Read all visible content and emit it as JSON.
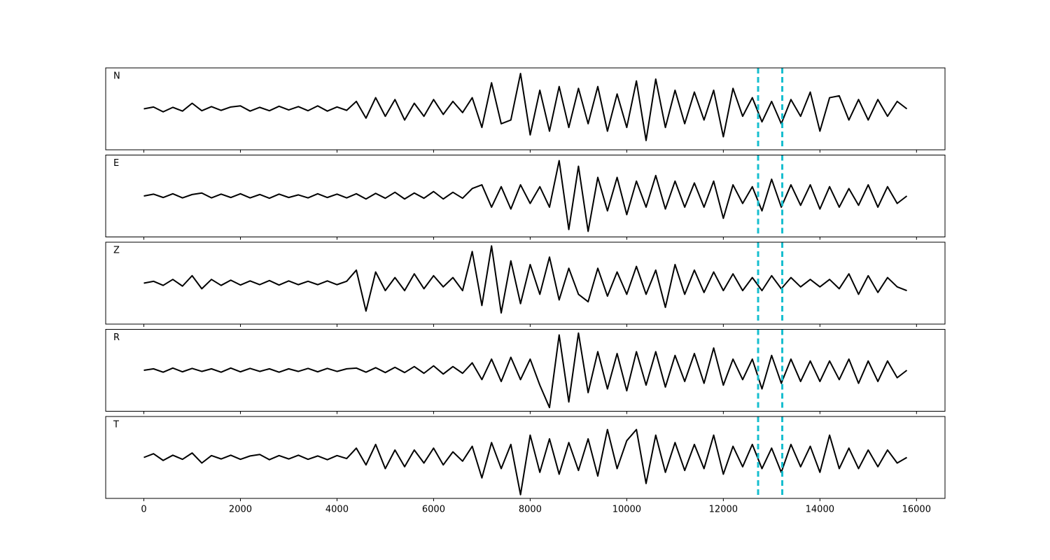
{
  "chart_data": {
    "type": "line",
    "x": [
      0,
      200,
      400,
      600,
      800,
      1000,
      1200,
      1400,
      1600,
      1800,
      2000,
      2200,
      2400,
      2600,
      2800,
      3000,
      3200,
      3400,
      3600,
      3800,
      4000,
      4200,
      4400,
      4600,
      4800,
      5000,
      5200,
      5400,
      5600,
      5800,
      6000,
      6200,
      6400,
      6600,
      6800,
      7000,
      7200,
      7400,
      7600,
      7800,
      8000,
      8200,
      8400,
      8600,
      8800,
      9000,
      9200,
      9400,
      9600,
      9800,
      10000,
      10200,
      10400,
      10600,
      10800,
      11000,
      11200,
      11400,
      11600,
      11800,
      12000,
      12200,
      12400,
      12600,
      12800,
      13000,
      13200,
      13400,
      13600,
      13800,
      14000,
      14200,
      14400,
      14600,
      14800,
      15000,
      15200,
      15400,
      15600,
      15800
    ],
    "series": [
      {
        "name": "N",
        "color": "#000000",
        "values": [
          0,
          0.05,
          -0.08,
          0.04,
          -0.06,
          0.15,
          -0.05,
          0.06,
          -0.04,
          0.05,
          0.08,
          -0.06,
          0.04,
          -0.05,
          0.07,
          -0.03,
          0.06,
          -0.05,
          0.08,
          -0.06,
          0.05,
          -0.04,
          0.2,
          -0.25,
          0.3,
          -0.2,
          0.25,
          -0.3,
          0.15,
          -0.2,
          0.25,
          -0.15,
          0.2,
          -0.1,
          0.3,
          -0.5,
          0.7,
          -0.4,
          -0.3,
          0.95,
          -0.7,
          0.5,
          -0.6,
          0.6,
          -0.5,
          0.55,
          -0.4,
          0.6,
          -0.6,
          0.4,
          -0.5,
          0.75,
          -0.85,
          0.8,
          -0.5,
          0.5,
          -0.4,
          0.45,
          -0.3,
          0.5,
          -0.75,
          0.55,
          -0.2,
          0.3,
          -0.35,
          0.2,
          -0.4,
          0.25,
          -0.2,
          0.45,
          -0.6,
          0.3,
          0.35,
          -0.3,
          0.25,
          -0.3,
          0.25,
          -0.2,
          0.2,
          0
        ]
      },
      {
        "name": "E",
        "color": "#000000",
        "values": [
          0,
          0.05,
          -0.04,
          0.06,
          -0.05,
          0.04,
          0.08,
          -0.05,
          0.05,
          -0.04,
          0.06,
          -0.05,
          0.04,
          -0.06,
          0.05,
          -0.04,
          0.03,
          -0.05,
          0.06,
          -0.04,
          0.05,
          -0.05,
          0.06,
          -0.08,
          0.07,
          -0.06,
          0.1,
          -0.08,
          0.08,
          -0.06,
          0.12,
          -0.08,
          0.1,
          -0.06,
          0.2,
          0.3,
          -0.3,
          0.25,
          -0.35,
          0.3,
          -0.2,
          0.25,
          -0.3,
          0.95,
          -0.9,
          0.8,
          -0.95,
          0.5,
          -0.4,
          0.5,
          -0.5,
          0.4,
          -0.3,
          0.55,
          -0.35,
          0.4,
          -0.3,
          0.35,
          -0.3,
          0.4,
          -0.6,
          0.3,
          -0.2,
          0.25,
          -0.4,
          0.45,
          -0.3,
          0.3,
          -0.25,
          0.3,
          -0.35,
          0.25,
          -0.3,
          0.2,
          -0.25,
          0.3,
          -0.3,
          0.25,
          -0.2,
          0
        ]
      },
      {
        "name": "Z",
        "color": "#000000",
        "values": [
          0,
          0.05,
          -0.06,
          0.1,
          -0.08,
          0.2,
          -0.15,
          0.1,
          -0.06,
          0.08,
          -0.05,
          0.06,
          -0.04,
          0.07,
          -0.05,
          0.06,
          -0.04,
          0.05,
          -0.04,
          0.06,
          -0.04,
          0.05,
          0.35,
          -0.75,
          0.3,
          -0.2,
          0.15,
          -0.2,
          0.25,
          -0.15,
          0.2,
          -0.1,
          0.15,
          -0.2,
          0.85,
          -0.6,
          1.0,
          -0.8,
          0.6,
          -0.55,
          0.5,
          -0.3,
          0.7,
          -0.45,
          0.4,
          -0.3,
          -0.5,
          0.4,
          -0.35,
          0.3,
          -0.3,
          0.45,
          -0.3,
          0.35,
          -0.65,
          0.5,
          -0.3,
          0.35,
          -0.25,
          0.3,
          -0.2,
          0.25,
          -0.2,
          0.15,
          -0.2,
          0.2,
          -0.15,
          0.15,
          -0.1,
          0.1,
          -0.1,
          0.1,
          -0.15,
          0.25,
          -0.3,
          0.2,
          -0.25,
          0.15,
          -0.1,
          -0.2
        ]
      },
      {
        "name": "R",
        "color": "#000000",
        "values": [
          0,
          0.04,
          -0.05,
          0.06,
          -0.04,
          0.05,
          -0.03,
          0.04,
          -0.05,
          0.06,
          -0.04,
          0.05,
          -0.03,
          0.04,
          -0.05,
          0.04,
          -0.03,
          0.05,
          -0.04,
          0.05,
          -0.03,
          0.04,
          0.06,
          -0.05,
          0.07,
          -0.06,
          0.08,
          -0.06,
          0.1,
          -0.08,
          0.12,
          -0.1,
          0.1,
          -0.08,
          0.2,
          -0.25,
          0.3,
          -0.3,
          0.35,
          -0.25,
          0.3,
          -0.4,
          -1.0,
          0.95,
          -0.85,
          1.0,
          -0.6,
          0.5,
          -0.5,
          0.45,
          -0.55,
          0.5,
          -0.4,
          0.5,
          -0.45,
          0.4,
          -0.3,
          0.45,
          -0.35,
          0.6,
          -0.4,
          0.3,
          -0.25,
          0.3,
          -0.5,
          0.4,
          -0.35,
          0.3,
          -0.3,
          0.25,
          -0.3,
          0.25,
          -0.25,
          0.3,
          -0.35,
          0.25,
          -0.3,
          0.25,
          -0.2,
          0
        ]
      },
      {
        "name": "T",
        "color": "#000000",
        "values": [
          0,
          0.1,
          -0.08,
          0.06,
          -0.05,
          0.12,
          -0.15,
          0.05,
          -0.04,
          0.06,
          -0.05,
          0.04,
          0.08,
          -0.06,
          0.05,
          -0.04,
          0.06,
          -0.05,
          0.04,
          -0.06,
          0.05,
          -0.03,
          0.25,
          -0.2,
          0.35,
          -0.3,
          0.2,
          -0.25,
          0.2,
          -0.15,
          0.25,
          -0.2,
          0.15,
          -0.1,
          0.3,
          -0.55,
          0.4,
          -0.3,
          0.35,
          -1.0,
          0.6,
          -0.4,
          0.5,
          -0.45,
          0.4,
          -0.35,
          0.5,
          -0.5,
          0.75,
          -0.3,
          0.45,
          0.75,
          -0.7,
          0.6,
          -0.4,
          0.4,
          -0.35,
          0.35,
          -0.3,
          0.6,
          -0.45,
          0.3,
          -0.25,
          0.35,
          -0.3,
          0.25,
          -0.4,
          0.35,
          -0.25,
          0.3,
          -0.4,
          0.6,
          -0.3,
          0.25,
          -0.3,
          0.2,
          -0.25,
          0.2,
          -0.15,
          0
        ]
      }
    ],
    "xlim": [
      -790,
      16590
    ],
    "xticks": [
      0,
      2000,
      4000,
      6000,
      8000,
      10000,
      12000,
      14000,
      16000
    ],
    "ylim": [
      -1.1,
      1.1
    ],
    "vlines": [
      12720,
      13220
    ],
    "vline_color": "#17becf"
  }
}
